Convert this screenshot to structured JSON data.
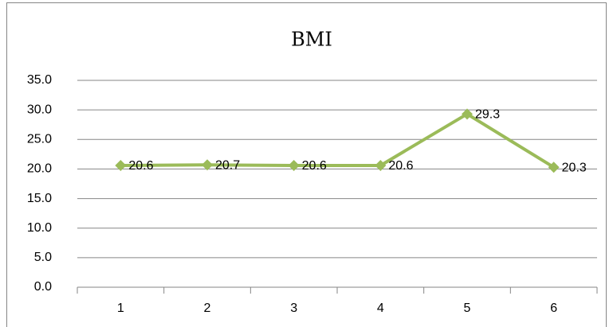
{
  "chart_data": {
    "type": "line",
    "title": "BMI",
    "categories": [
      "1",
      "2",
      "3",
      "4",
      "5",
      "6"
    ],
    "series": [
      {
        "name": "BMI",
        "color": "#9bbb59",
        "values": [
          20.6,
          20.7,
          20.6,
          20.6,
          29.3,
          20.3
        ]
      }
    ],
    "ylim": [
      0,
      35
    ],
    "yticks": [
      {
        "value": 0,
        "label": "0.0"
      },
      {
        "value": 5,
        "label": "5.0"
      },
      {
        "value": 10,
        "label": "10.0"
      },
      {
        "value": 15,
        "label": "15.0"
      },
      {
        "value": 20,
        "label": "20.0"
      },
      {
        "value": 25,
        "label": "25.0"
      },
      {
        "value": 30,
        "label": "30.0"
      },
      {
        "value": 35,
        "label": "35.0"
      }
    ],
    "grid": true
  }
}
